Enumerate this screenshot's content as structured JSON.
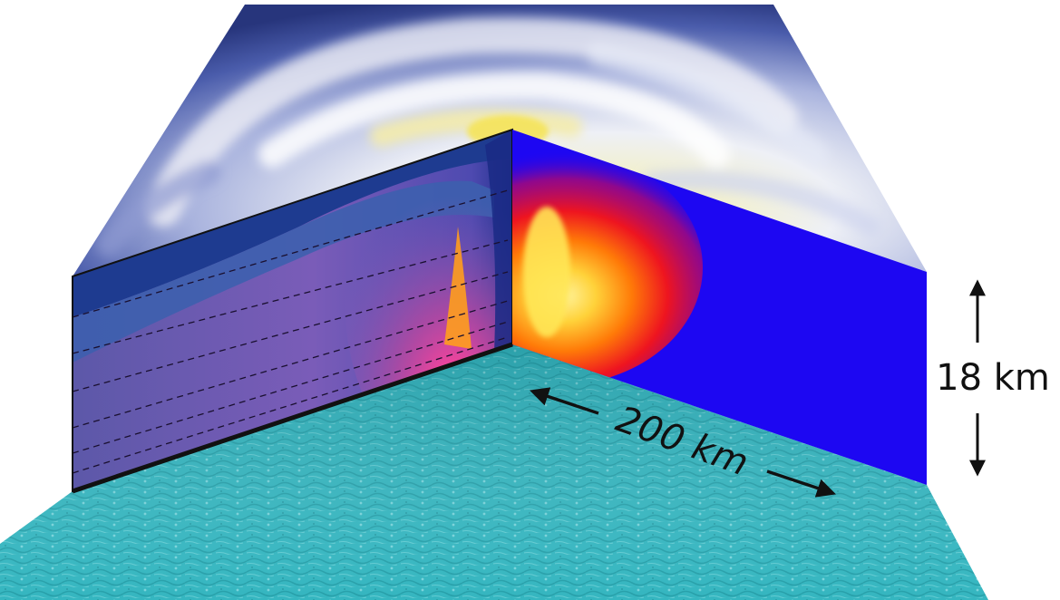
{
  "labels": {
    "height": "18 km",
    "width": "200 km"
  },
  "colors": {
    "background": "#ffffff",
    "ocean": "#2fb3bd",
    "ocean_dark": "#17868f",
    "cloud_sky": "#3d4f9e",
    "cloud_white": "#f1f1f6",
    "cloud_yellow": "#f4e98a",
    "right_panel": "#1d07f2",
    "heat_red": "#e8121c",
    "heat_orange": "#ff8c00",
    "heat_yellow": "#ffe14a",
    "left_panel_blue": "#2d4aa0",
    "left_panel_purple": "#7656b6",
    "left_panel_magenta": "#d33b9b",
    "arrow": "#111111"
  }
}
